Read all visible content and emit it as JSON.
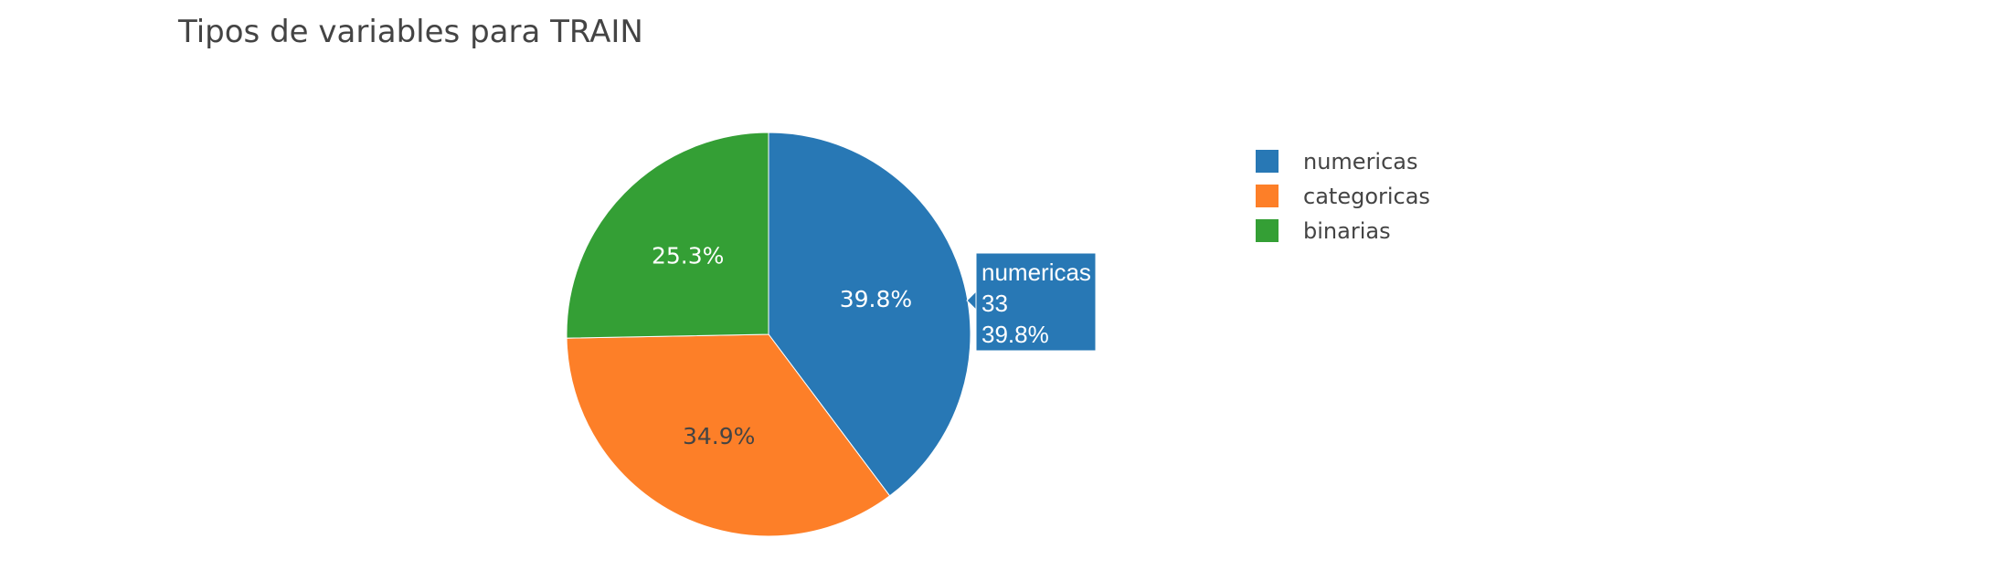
{
  "chart_data": {
    "type": "pie",
    "title": "Tipos de variables para TRAIN",
    "categories": [
      "numericas",
      "categoricas",
      "binarias"
    ],
    "values": [
      33,
      29,
      21
    ],
    "percent_labels": [
      "39.8%",
      "34.9%",
      "25.3%"
    ],
    "colors": [
      "#2878b5",
      "#fd7f28",
      "#349f35"
    ],
    "label_text_colors": [
      "#ffffff",
      "#444444",
      "#ffffff"
    ],
    "direction": "clockwise",
    "start_angle": "12 o'clock",
    "legend": {
      "position": "top-right",
      "entries": [
        "numericas",
        "categoricas",
        "binarias"
      ]
    },
    "hover": {
      "category": "numericas",
      "lines": [
        "numericas",
        "33",
        "39.8%"
      ]
    }
  }
}
